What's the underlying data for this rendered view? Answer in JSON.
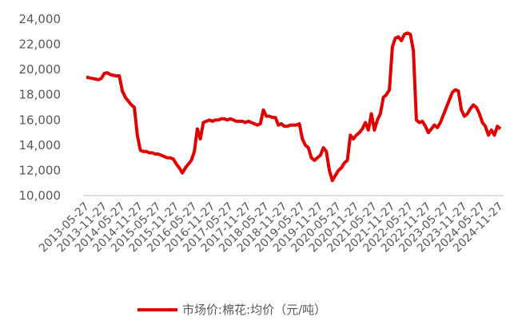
{
  "chart_data": {
    "type": "line",
    "categories": [
      "2013-05-27",
      null,
      null,
      null,
      null,
      null,
      "2013-11-27",
      null,
      null,
      null,
      null,
      null,
      "2014-05-27",
      null,
      null,
      null,
      null,
      null,
      "2014-11-27",
      null,
      null,
      null,
      null,
      null,
      "2015-05-27",
      null,
      null,
      null,
      null,
      null,
      "2015-11-27",
      null,
      null,
      null,
      null,
      null,
      "2016-05-27",
      null,
      null,
      null,
      null,
      null,
      "2016-11-27",
      null,
      null,
      null,
      null,
      null,
      "2017-05-27",
      null,
      null,
      null,
      null,
      null,
      "2017-11-27",
      null,
      null,
      null,
      null,
      null,
      "2018-05-27",
      null,
      null,
      null,
      null,
      null,
      "2018-11-27",
      null,
      null,
      null,
      null,
      null,
      "2019-05-27",
      null,
      null,
      null,
      null,
      null,
      "2019-11-27",
      null,
      null,
      null,
      null,
      null,
      "2020-05-27",
      null,
      null,
      null,
      null,
      null,
      "2020-11-27",
      null,
      null,
      null,
      null,
      null,
      "2021-05-27",
      null,
      null,
      null,
      null,
      null,
      "2021-11-27",
      null,
      null,
      null,
      null,
      null,
      "2022-05-27",
      null,
      null,
      null,
      null,
      null,
      "2022-11-27",
      null,
      null,
      null,
      null,
      null,
      "2023-05-27",
      null,
      null,
      null,
      null,
      null,
      "2023-11-27",
      null,
      null,
      null,
      null,
      null,
      "2024-05-27",
      null,
      null,
      null,
      null,
      null,
      "2024-11-27"
    ],
    "series": [
      {
        "name": "市场价:棉花:均价（元/吨）",
        "color": "#e00000",
        "values": [
          19400,
          19350,
          19300,
          19250,
          19200,
          19300,
          19700,
          19750,
          19600,
          19550,
          19500,
          19500,
          18300,
          17800,
          17500,
          17200,
          17000,
          14800,
          13600,
          13500,
          13500,
          13400,
          13400,
          13300,
          13300,
          13200,
          13100,
          13000,
          13000,
          12900,
          12500,
          12200,
          11800,
          12200,
          12500,
          12800,
          13500,
          15300,
          14500,
          15800,
          15900,
          16000,
          15900,
          16000,
          16000,
          16100,
          16100,
          16000,
          16100,
          16000,
          15900,
          15900,
          15900,
          15800,
          15900,
          15800,
          15700,
          15600,
          15700,
          16800,
          16300,
          16300,
          16200,
          16200,
          15600,
          15700,
          15500,
          15500,
          15600,
          15600,
          15600,
          15700,
          14500,
          14000,
          13800,
          13000,
          12800,
          13000,
          13200,
          13800,
          13500,
          12000,
          11200,
          11600,
          12000,
          12200,
          12600,
          12800,
          14800,
          14500,
          14800,
          15000,
          15300,
          15800,
          15200,
          16500,
          15200,
          16000,
          16500,
          17800,
          18000,
          18400,
          21800,
          22500,
          22600,
          22300,
          22800,
          22900,
          22800,
          21500,
          16000,
          15800,
          15900,
          15500,
          15000,
          15300,
          15600,
          15400,
          15800,
          16400,
          17000,
          17600,
          18200,
          18400,
          18300,
          16800,
          16300,
          16500,
          16900,
          17200,
          17000,
          16500,
          15800,
          15500,
          14800,
          15200,
          14800,
          15500,
          15300
        ]
      }
    ],
    "ylim": [
      10000,
      24000
    ],
    "yticks": [
      {
        "value": 10000,
        "label": "10,000"
      },
      {
        "value": 12000,
        "label": "12,000"
      },
      {
        "value": 14000,
        "label": "14,000"
      },
      {
        "value": 16000,
        "label": "16,000"
      },
      {
        "value": 18000,
        "label": "18,000"
      },
      {
        "value": 20000,
        "label": "20,000"
      },
      {
        "value": 22000,
        "label": "22,000"
      },
      {
        "value": 24000,
        "label": "24,000"
      }
    ],
    "grid": false,
    "legend": "bottom"
  }
}
